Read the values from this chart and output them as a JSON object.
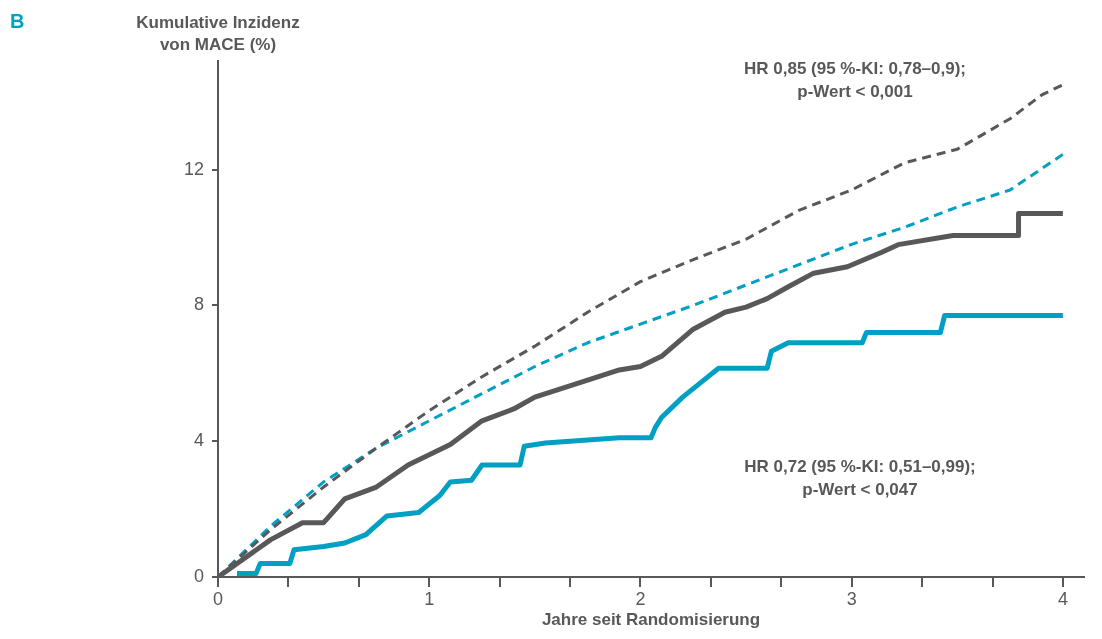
{
  "chart_data": {
    "type": "line",
    "ylabel": "Kumulative Inzidenz von MACE (%)",
    "xlabel": "Jahre seit Randomisierung",
    "xlim": [
      0,
      4.1
    ],
    "ylim": [
      0,
      15.2
    ],
    "xticks": [
      0,
      {
        "value": 0.333,
        "label": null
      },
      {
        "value": 0.667,
        "label": null
      },
      1,
      {
        "value": 1.333,
        "label": null
      },
      {
        "value": 1.667,
        "label": null
      },
      2,
      {
        "value": 2.333,
        "label": null
      },
      {
        "value": 2.667,
        "label": null
      },
      3,
      {
        "value": 3.333,
        "label": null
      },
      {
        "value": 3.667,
        "label": null
      },
      4
    ],
    "yticks": [
      0,
      4,
      8,
      12
    ],
    "grid": false,
    "legend": false,
    "marker": "none",
    "annotations": [
      "B",
      "HR 0,85 (95 %-KI: 0,78–0,9);\np-Wert < 0,001",
      "HR 0,72 (95 %-KI: 0,51–0,99);\np-Wert < 0,047"
    ],
    "series": [
      {
        "color": "#58585a",
        "line_style": "dashed",
        "x": [
          0,
          0.25,
          0.5,
          0.75,
          1,
          1.25,
          1.5,
          1.75,
          2,
          2.25,
          2.5,
          2.75,
          3,
          3.25,
          3.5,
          3.75,
          3.9,
          4
        ],
        "values": [
          0,
          1.4,
          2.65,
          3.8,
          4.9,
          5.9,
          6.8,
          7.8,
          8.7,
          9.35,
          9.95,
          10.8,
          11.4,
          12.2,
          12.6,
          13.5,
          14.2,
          14.5
        ]
      },
      {
        "color": "#009fc4",
        "line_style": "dashed",
        "x": [
          0,
          0.25,
          0.5,
          0.75,
          1,
          1.25,
          1.5,
          1.75,
          2,
          2.25,
          2.5,
          2.75,
          3,
          3.25,
          3.5,
          3.75,
          4
        ],
        "values": [
          0,
          1.5,
          2.8,
          3.8,
          4.6,
          5.4,
          6.2,
          6.9,
          7.45,
          8.0,
          8.6,
          9.2,
          9.8,
          10.3,
          10.9,
          11.4,
          12.45
        ]
      },
      {
        "color": "#58585a",
        "line_style": "solid",
        "x": [
          0,
          0.25,
          0.4,
          0.5,
          0.6,
          0.75,
          0.9,
          1,
          1.1,
          1.25,
          1.4,
          1.5,
          1.75,
          1.9,
          2,
          2.1,
          2.25,
          2.4,
          2.5,
          2.6,
          2.7,
          2.82,
          2.98,
          3.14,
          3.22,
          3.48,
          3.79,
          3.79,
          4
        ],
        "values": [
          0,
          1.1,
          1.6,
          1.6,
          2.3,
          2.65,
          3.3,
          3.6,
          3.9,
          4.6,
          4.95,
          5.3,
          5.8,
          6.1,
          6.2,
          6.5,
          7.3,
          7.8,
          7.95,
          8.2,
          8.55,
          8.95,
          9.14,
          9.56,
          9.79,
          10.06,
          10.06,
          10.71,
          10.71
        ]
      },
      {
        "color": "#009fc4",
        "line_style": "solid",
        "x": [
          0.09,
          0.18,
          0.2,
          0.34,
          0.36,
          0.5,
          0.6,
          0.7,
          0.8,
          0.95,
          1.05,
          1.1,
          1.2,
          1.25,
          1.43,
          1.45,
          1.55,
          1.9,
          2.05,
          2.07,
          2.1,
          2.2,
          2.3,
          2.37,
          2.6,
          2.62,
          2.7,
          3.05,
          3.07,
          3.42,
          3.44,
          4
        ],
        "values": [
          0.1,
          0.1,
          0.4,
          0.4,
          0.8,
          0.9,
          1.0,
          1.25,
          1.8,
          1.9,
          2.4,
          2.8,
          2.85,
          3.3,
          3.3,
          3.85,
          3.95,
          4.1,
          4.1,
          4.4,
          4.7,
          5.3,
          5.8,
          6.15,
          6.15,
          6.65,
          6.9,
          6.9,
          7.2,
          7.2,
          7.7,
          7.7
        ]
      }
    ]
  }
}
